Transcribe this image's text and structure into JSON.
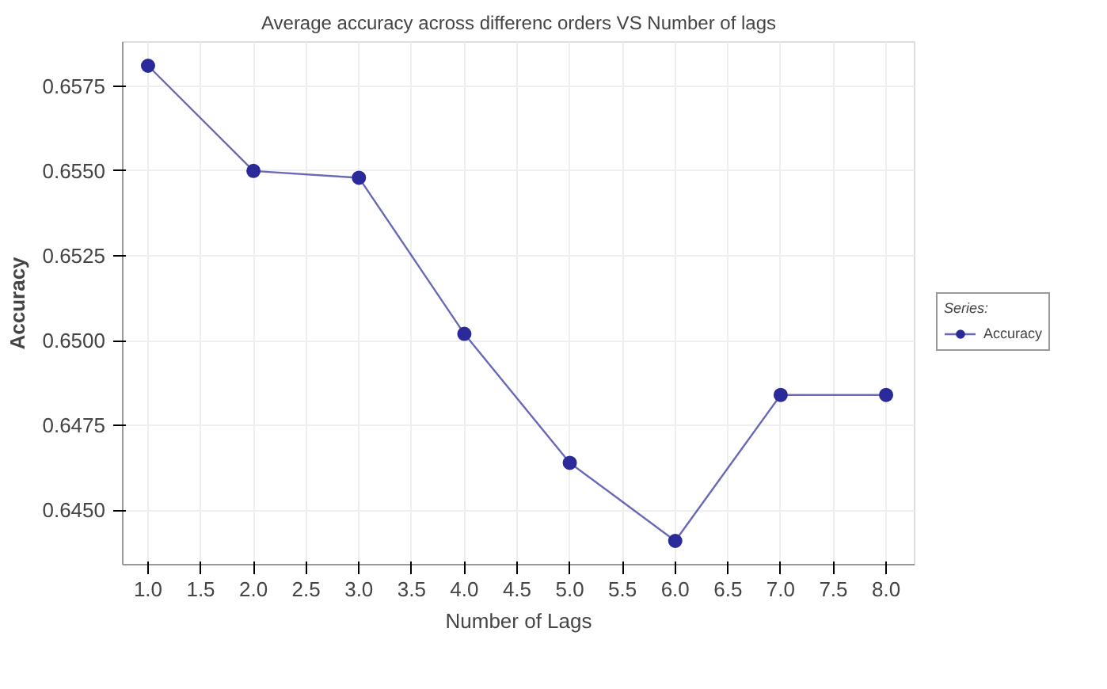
{
  "chart_data": {
    "type": "line",
    "title": "Average accuracy across differenc orders VS Number of lags",
    "xlabel": "Number of Lags",
    "ylabel": "Accuracy",
    "legend_title": "Series:",
    "x": [
      1.0,
      2.0,
      3.0,
      4.0,
      5.0,
      6.0,
      7.0,
      8.0
    ],
    "series": [
      {
        "name": "Accuracy",
        "color": "#2a2a9a",
        "values": [
          0.6581,
          0.655,
          0.6548,
          0.6502,
          0.6464,
          0.6441,
          0.6484,
          0.6484
        ]
      }
    ],
    "xlim": [
      0.76,
      8.27
    ],
    "xticks": [
      {
        "value": 1.0,
        "label": "1.0"
      },
      {
        "value": 1.5,
        "label": "1.5"
      },
      {
        "value": 2.0,
        "label": "2.0"
      },
      {
        "value": 2.5,
        "label": "2.5"
      },
      {
        "value": 3.0,
        "label": "3.0"
      },
      {
        "value": 3.5,
        "label": "3.5"
      },
      {
        "value": 4.0,
        "label": "4.0"
      },
      {
        "value": 4.5,
        "label": "4.5"
      },
      {
        "value": 5.0,
        "label": "5.0"
      },
      {
        "value": 5.5,
        "label": "5.5"
      },
      {
        "value": 6.0,
        "label": "6.0"
      },
      {
        "value": 6.5,
        "label": "6.5"
      },
      {
        "value": 7.0,
        "label": "7.0"
      },
      {
        "value": 7.5,
        "label": "7.5"
      },
      {
        "value": 8.0,
        "label": "8.0"
      }
    ],
    "ylim": [
      0.6434,
      0.6588
    ],
    "yticks": [
      {
        "value": 0.645,
        "label": "0.6450"
      },
      {
        "value": 0.6475,
        "label": "0.6475"
      },
      {
        "value": 0.65,
        "label": "0.6500"
      },
      {
        "value": 0.6525,
        "label": "0.6525"
      },
      {
        "value": 0.655,
        "label": "0.6550"
      },
      {
        "value": 0.6575,
        "label": "0.6575"
      }
    ],
    "grid": true,
    "legend": "right",
    "marker": "circle",
    "line_style": "solid"
  }
}
